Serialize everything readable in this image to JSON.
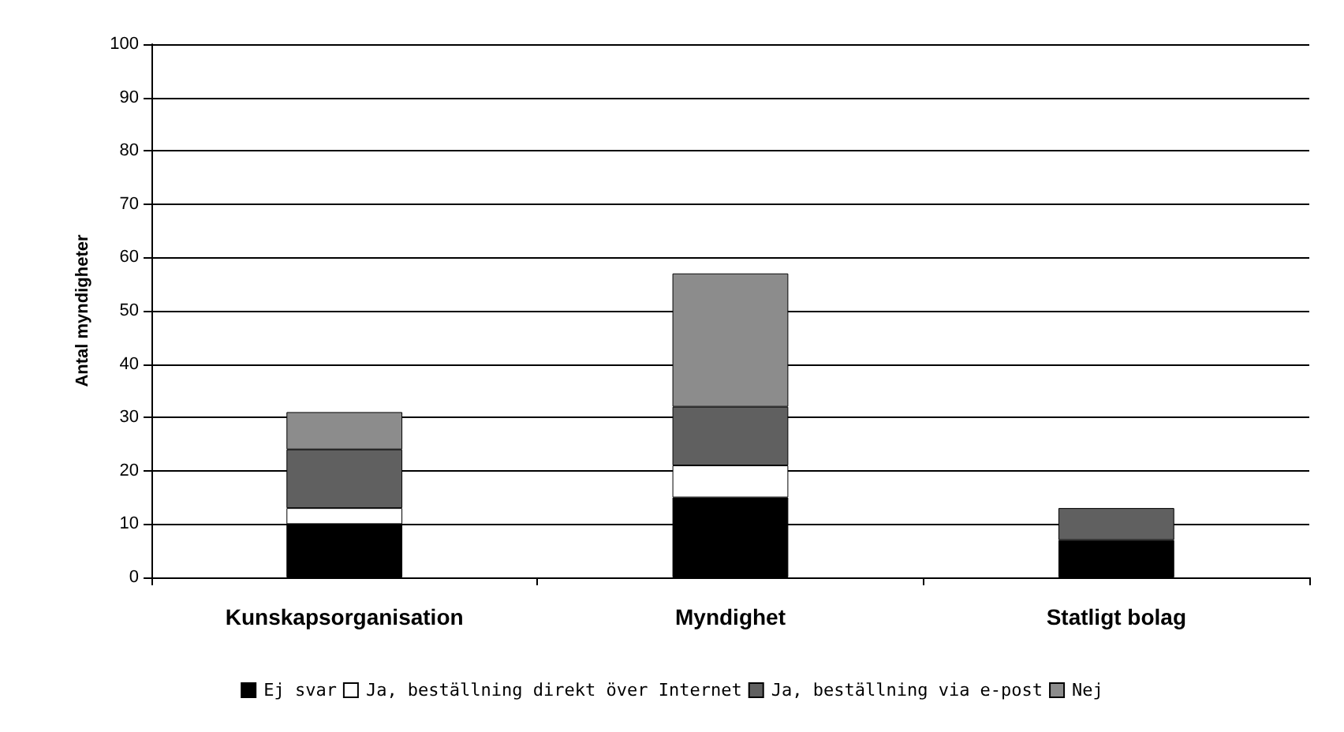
{
  "chart_data": {
    "type": "bar",
    "stacked": true,
    "ylabel": "Antal myndigheter",
    "categories": [
      "Kunskapsorganisation",
      "Myndighet",
      "Statligt bolag"
    ],
    "series": [
      {
        "name": "Ej svar",
        "color": "#000000",
        "values": [
          10,
          15,
          7
        ]
      },
      {
        "name": "Ja, beställning direkt över Internet",
        "color": "#ffffff",
        "values": [
          3,
          6,
          0
        ]
      },
      {
        "name": "Ja, beställning via e-post",
        "color": "#606060",
        "values": [
          11,
          11,
          6
        ]
      },
      {
        "name": "Nej",
        "color": "#8c8c8c",
        "values": [
          7,
          25,
          0
        ]
      }
    ],
    "ylim": [
      0,
      100
    ],
    "yticks": [
      0,
      10,
      20,
      30,
      40,
      50,
      60,
      70,
      80,
      90,
      100
    ],
    "grid": "y",
    "legend": "bottom"
  }
}
